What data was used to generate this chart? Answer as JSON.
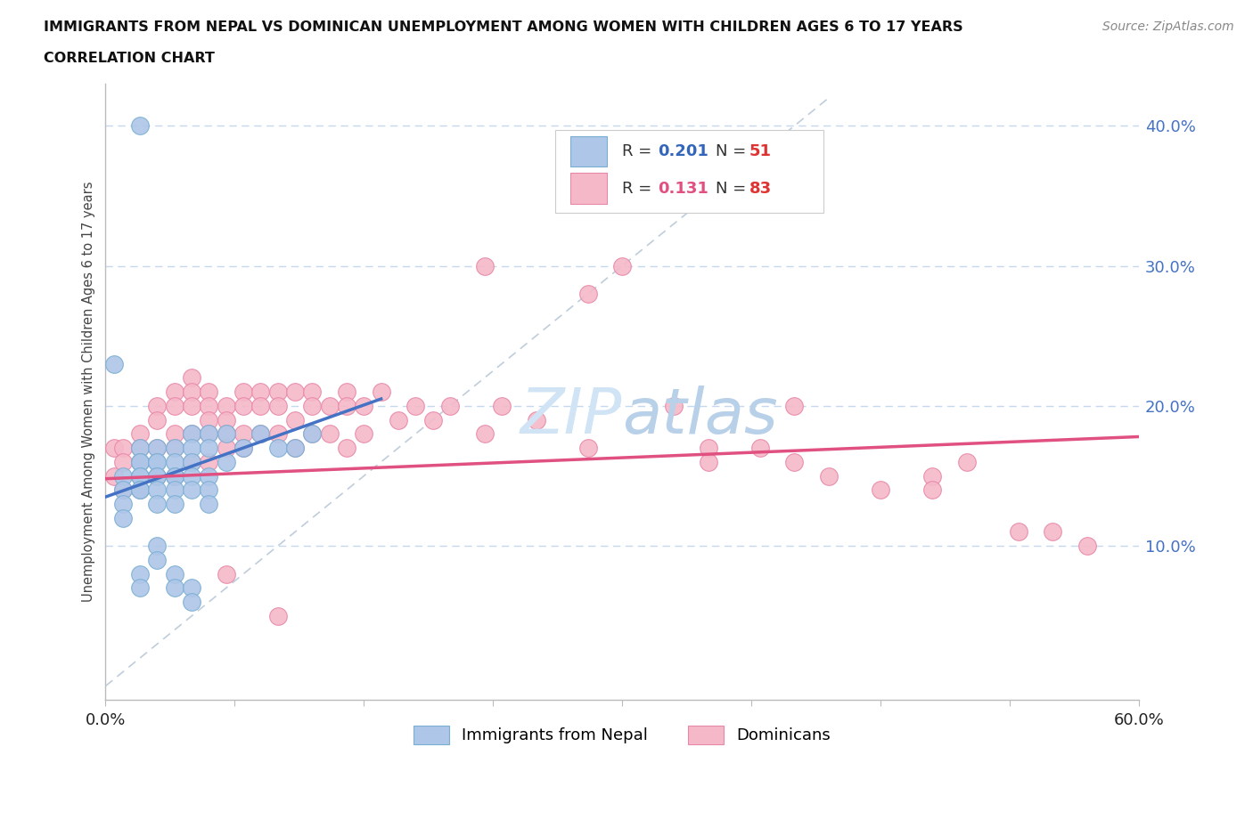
{
  "title": "IMMIGRANTS FROM NEPAL VS DOMINICAN UNEMPLOYMENT AMONG WOMEN WITH CHILDREN AGES 6 TO 17 YEARS",
  "subtitle": "CORRELATION CHART",
  "source": "Source: ZipAtlas.com",
  "ylabel": "Unemployment Among Women with Children Ages 6 to 17 years",
  "xlim": [
    0.0,
    0.6
  ],
  "ylim": [
    -0.01,
    0.43
  ],
  "nepal_R": "0.201",
  "nepal_N": "51",
  "dominican_R": "0.131",
  "dominican_N": "83",
  "nepal_color": "#aec6e8",
  "nepal_edge_color": "#7aafd4",
  "dominican_color": "#f5b8c8",
  "dominican_edge_color": "#e888a8",
  "nepal_line_color": "#4472c4",
  "dominican_line_color": "#e05080",
  "grid_color": "#c5d8ed",
  "diag_line_color": "#b8c8d8",
  "legend_R_color": "#3366bb",
  "legend_N_color": "#dd3333",
  "watermark_color": "#d0e4f5",
  "nepal_x": [
    0.005,
    0.01,
    0.01,
    0.01,
    0.01,
    0.02,
    0.02,
    0.02,
    0.02,
    0.02,
    0.02,
    0.02,
    0.02,
    0.02,
    0.03,
    0.03,
    0.03,
    0.03,
    0.03,
    0.03,
    0.03,
    0.03,
    0.03,
    0.04,
    0.04,
    0.04,
    0.04,
    0.04,
    0.04,
    0.04,
    0.04,
    0.05,
    0.05,
    0.05,
    0.05,
    0.05,
    0.05,
    0.05,
    0.06,
    0.06,
    0.06,
    0.06,
    0.06,
    0.07,
    0.07,
    0.08,
    0.09,
    0.1,
    0.11,
    0.12,
    0.02
  ],
  "nepal_y": [
    0.23,
    0.15,
    0.14,
    0.13,
    0.12,
    0.17,
    0.16,
    0.16,
    0.15,
    0.15,
    0.14,
    0.14,
    0.08,
    0.07,
    0.17,
    0.16,
    0.16,
    0.15,
    0.15,
    0.14,
    0.13,
    0.1,
    0.09,
    0.17,
    0.16,
    0.15,
    0.15,
    0.14,
    0.13,
    0.08,
    0.07,
    0.18,
    0.17,
    0.16,
    0.15,
    0.14,
    0.07,
    0.06,
    0.18,
    0.17,
    0.15,
    0.14,
    0.13,
    0.18,
    0.16,
    0.17,
    0.18,
    0.17,
    0.17,
    0.18,
    0.4
  ],
  "dominican_x": [
    0.005,
    0.005,
    0.01,
    0.01,
    0.01,
    0.02,
    0.02,
    0.02,
    0.02,
    0.03,
    0.03,
    0.03,
    0.03,
    0.04,
    0.04,
    0.04,
    0.04,
    0.04,
    0.05,
    0.05,
    0.05,
    0.05,
    0.05,
    0.06,
    0.06,
    0.06,
    0.06,
    0.06,
    0.07,
    0.07,
    0.07,
    0.07,
    0.08,
    0.08,
    0.08,
    0.08,
    0.09,
    0.09,
    0.09,
    0.1,
    0.1,
    0.1,
    0.11,
    0.11,
    0.11,
    0.12,
    0.12,
    0.12,
    0.13,
    0.13,
    0.14,
    0.14,
    0.14,
    0.15,
    0.15,
    0.16,
    0.17,
    0.18,
    0.19,
    0.2,
    0.22,
    0.23,
    0.25,
    0.28,
    0.3,
    0.33,
    0.35,
    0.38,
    0.4,
    0.42,
    0.45,
    0.48,
    0.5,
    0.53,
    0.55,
    0.57,
    0.4,
    0.28,
    0.22,
    0.35,
    0.48,
    0.1,
    0.07
  ],
  "dominican_y": [
    0.17,
    0.15,
    0.17,
    0.16,
    0.14,
    0.18,
    0.17,
    0.16,
    0.14,
    0.2,
    0.19,
    0.17,
    0.15,
    0.21,
    0.2,
    0.18,
    0.17,
    0.15,
    0.22,
    0.21,
    0.2,
    0.18,
    0.16,
    0.21,
    0.2,
    0.19,
    0.18,
    0.16,
    0.2,
    0.19,
    0.18,
    0.17,
    0.21,
    0.2,
    0.18,
    0.17,
    0.21,
    0.2,
    0.18,
    0.21,
    0.2,
    0.18,
    0.21,
    0.19,
    0.17,
    0.21,
    0.2,
    0.18,
    0.2,
    0.18,
    0.21,
    0.2,
    0.17,
    0.2,
    0.18,
    0.21,
    0.19,
    0.2,
    0.19,
    0.2,
    0.18,
    0.2,
    0.19,
    0.17,
    0.3,
    0.2,
    0.17,
    0.17,
    0.16,
    0.15,
    0.14,
    0.15,
    0.16,
    0.11,
    0.11,
    0.1,
    0.2,
    0.28,
    0.3,
    0.16,
    0.14,
    0.05,
    0.08
  ],
  "nepal_trendline_x": [
    0.0,
    0.16
  ],
  "nepal_trendline_y": [
    0.135,
    0.205
  ],
  "dominican_trendline_x": [
    0.0,
    0.6
  ],
  "dominican_trendline_y": [
    0.148,
    0.178
  ]
}
